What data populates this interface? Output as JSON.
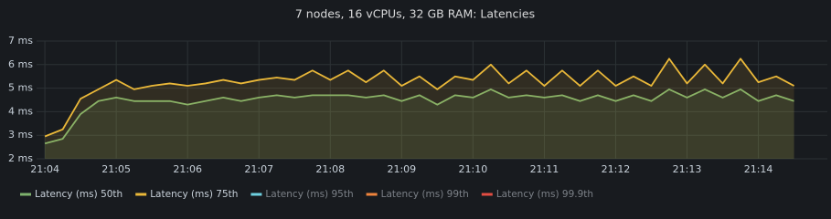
{
  "chart_data": {
    "type": "line",
    "title": "7 nodes, 16 vCPUs, 32 GB RAM: Latencies",
    "x": [
      75840,
      75855,
      75870,
      75885,
      75900,
      75915,
      75930,
      75945,
      75960,
      75975,
      75990,
      76005,
      76020,
      76035,
      76050,
      76065,
      76080,
      76095,
      76110,
      76125,
      76140,
      76155,
      76170,
      76185,
      76200,
      76215,
      76230,
      76245,
      76260,
      76275,
      76290,
      76305,
      76320,
      76335,
      76350,
      76365,
      76380,
      76395,
      76410,
      76425,
      76440,
      76455,
      76470
    ],
    "xlim": [
      75833,
      76498
    ],
    "xticks": [
      {
        "value": 75840,
        "label": "21:04"
      },
      {
        "value": 75900,
        "label": "21:05"
      },
      {
        "value": 75960,
        "label": "21:06"
      },
      {
        "value": 76020,
        "label": "21:07"
      },
      {
        "value": 76080,
        "label": "21:08"
      },
      {
        "value": 76140,
        "label": "21:09"
      },
      {
        "value": 76200,
        "label": "21:10"
      },
      {
        "value": 76260,
        "label": "21:11"
      },
      {
        "value": 76320,
        "label": "21:12"
      },
      {
        "value": 76380,
        "label": "21:13"
      },
      {
        "value": 76440,
        "label": "21:14"
      }
    ],
    "ylim": [
      2,
      7
    ],
    "yticks": [
      {
        "value": 2,
        "label": "2 ms"
      },
      {
        "value": 3,
        "label": "3 ms"
      },
      {
        "value": 4,
        "label": "4 ms"
      },
      {
        "value": 5,
        "label": "5 ms"
      },
      {
        "value": 6,
        "label": "6 ms"
      },
      {
        "value": 7,
        "label": "7 ms"
      }
    ],
    "grid": true,
    "legend": "bottom",
    "series": [
      {
        "name": "Latency (ms) 50th",
        "color": "#7eb26d",
        "values": [
          2.65,
          2.85,
          3.9,
          4.45,
          4.6,
          4.45,
          4.45,
          4.45,
          4.3,
          4.45,
          4.6,
          4.45,
          4.6,
          4.7,
          4.6,
          4.7,
          4.7,
          4.7,
          4.6,
          4.7,
          4.45,
          4.7,
          4.3,
          4.7,
          4.6,
          4.95,
          4.6,
          4.7,
          4.6,
          4.7,
          4.45,
          4.7,
          4.45,
          4.7,
          4.45,
          4.95,
          4.6,
          4.95,
          4.6,
          4.95,
          4.45,
          4.7,
          4.45
        ]
      },
      {
        "name": "Latency (ms) 75th",
        "color": "#eab839",
        "values": [
          2.95,
          3.25,
          4.55,
          4.95,
          5.35,
          4.95,
          5.1,
          5.2,
          5.1,
          5.2,
          5.35,
          5.2,
          5.35,
          5.45,
          5.35,
          5.75,
          5.35,
          5.75,
          5.25,
          5.75,
          5.1,
          5.5,
          4.95,
          5.5,
          5.35,
          6.0,
          5.2,
          5.75,
          5.1,
          5.75,
          5.1,
          5.75,
          5.1,
          5.5,
          5.1,
          6.25,
          5.2,
          6.0,
          5.2,
          6.25,
          5.25,
          5.5,
          5.1
        ]
      },
      {
        "name": "Latency (ms) 95th",
        "color": "#6ed0e0",
        "hidden": true
      },
      {
        "name": "Latency (ms) 99th",
        "color": "#ef843c",
        "hidden": true
      },
      {
        "name": "Latency (ms) 99.9th",
        "color": "#e24d42",
        "hidden": true
      }
    ]
  }
}
